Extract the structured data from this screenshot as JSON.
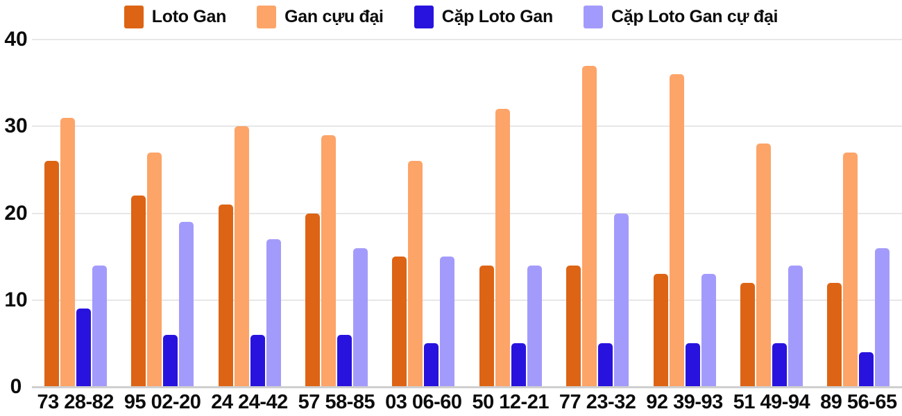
{
  "chart_data": {
    "type": "bar",
    "title": "",
    "categories": [
      "73 28-82",
      "95 02-20",
      "24 24-42",
      "57 58-85",
      "03 06-60",
      "50 12-21",
      "77 23-32",
      "92 39-93",
      "51 49-94",
      "89 56-65"
    ],
    "series": [
      {
        "name": "Loto Gan",
        "color": "#DD6414",
        "values": [
          26,
          22,
          21,
          20,
          15,
          14,
          14,
          13,
          12,
          12
        ]
      },
      {
        "name": "Gan cựu đại",
        "color": "#FDA468",
        "values": [
          31,
          27,
          30,
          29,
          26,
          32,
          37,
          36,
          28,
          27
        ]
      },
      {
        "name": "Cặp Loto Gan",
        "color": "#2813DE",
        "values": [
          9,
          6,
          6,
          6,
          5,
          5,
          5,
          5,
          5,
          4
        ]
      },
      {
        "name": "Cặp Loto Gan cự đại",
        "color": "#A39BFB",
        "values": [
          14,
          19,
          17,
          16,
          15,
          14,
          20,
          13,
          14,
          16
        ]
      }
    ],
    "xlabel": "",
    "ylabel": "",
    "ylim": [
      0,
      40
    ],
    "yticks": [
      0,
      10,
      20,
      30,
      40
    ],
    "grid": true,
    "legend_position": "top",
    "colors": {
      "gridline": "#E7E7E7",
      "axis_line": "#CFCFCF",
      "text": "#0C0C0C",
      "background": "#FFFFFF"
    }
  }
}
